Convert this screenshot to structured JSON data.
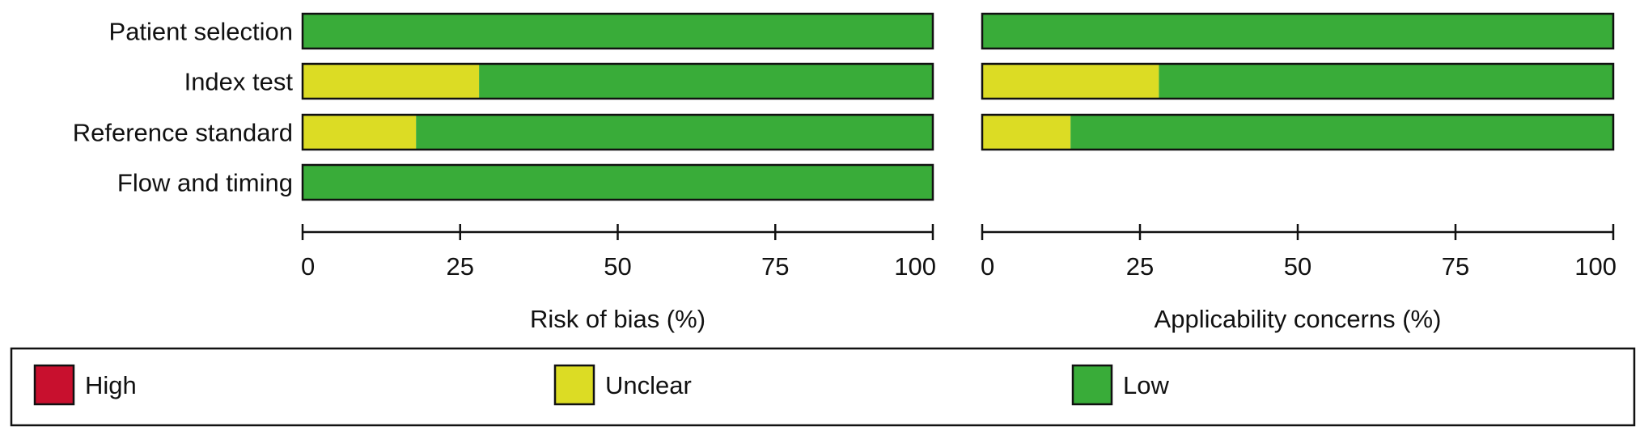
{
  "chart_data": {
    "type": "bar",
    "stacked": true,
    "orientation": "horizontal",
    "categories": [
      "Patient selection",
      "Index test",
      "Reference standard",
      "Flow and timing"
    ],
    "xlim": [
      0,
      100
    ],
    "ticks": [
      0,
      25,
      50,
      75,
      100
    ],
    "panels": [
      {
        "xlabel": "Risk of bias (%)",
        "series": [
          {
            "name": "High",
            "values": [
              0,
              0,
              0,
              0
            ]
          },
          {
            "name": "Unclear",
            "values": [
              0,
              28,
              18,
              0
            ]
          },
          {
            "name": "Low",
            "values": [
              100,
              72,
              82,
              100
            ]
          }
        ]
      },
      {
        "xlabel": "Applicability concerns (%)",
        "categories": [
          "Patient selection",
          "Index test",
          "Reference standard"
        ],
        "series": [
          {
            "name": "High",
            "values": [
              0,
              0,
              0
            ]
          },
          {
            "name": "Unclear",
            "values": [
              0,
              28,
              14
            ]
          },
          {
            "name": "Low",
            "values": [
              100,
              72,
              86
            ]
          }
        ]
      }
    ],
    "legend": {
      "placement": "bottom",
      "items": [
        "High",
        "Unclear",
        "Low"
      ]
    },
    "colors": {
      "High": "#c8102e",
      "Unclear": "#dcdc24",
      "Low": "#39ac39"
    }
  }
}
